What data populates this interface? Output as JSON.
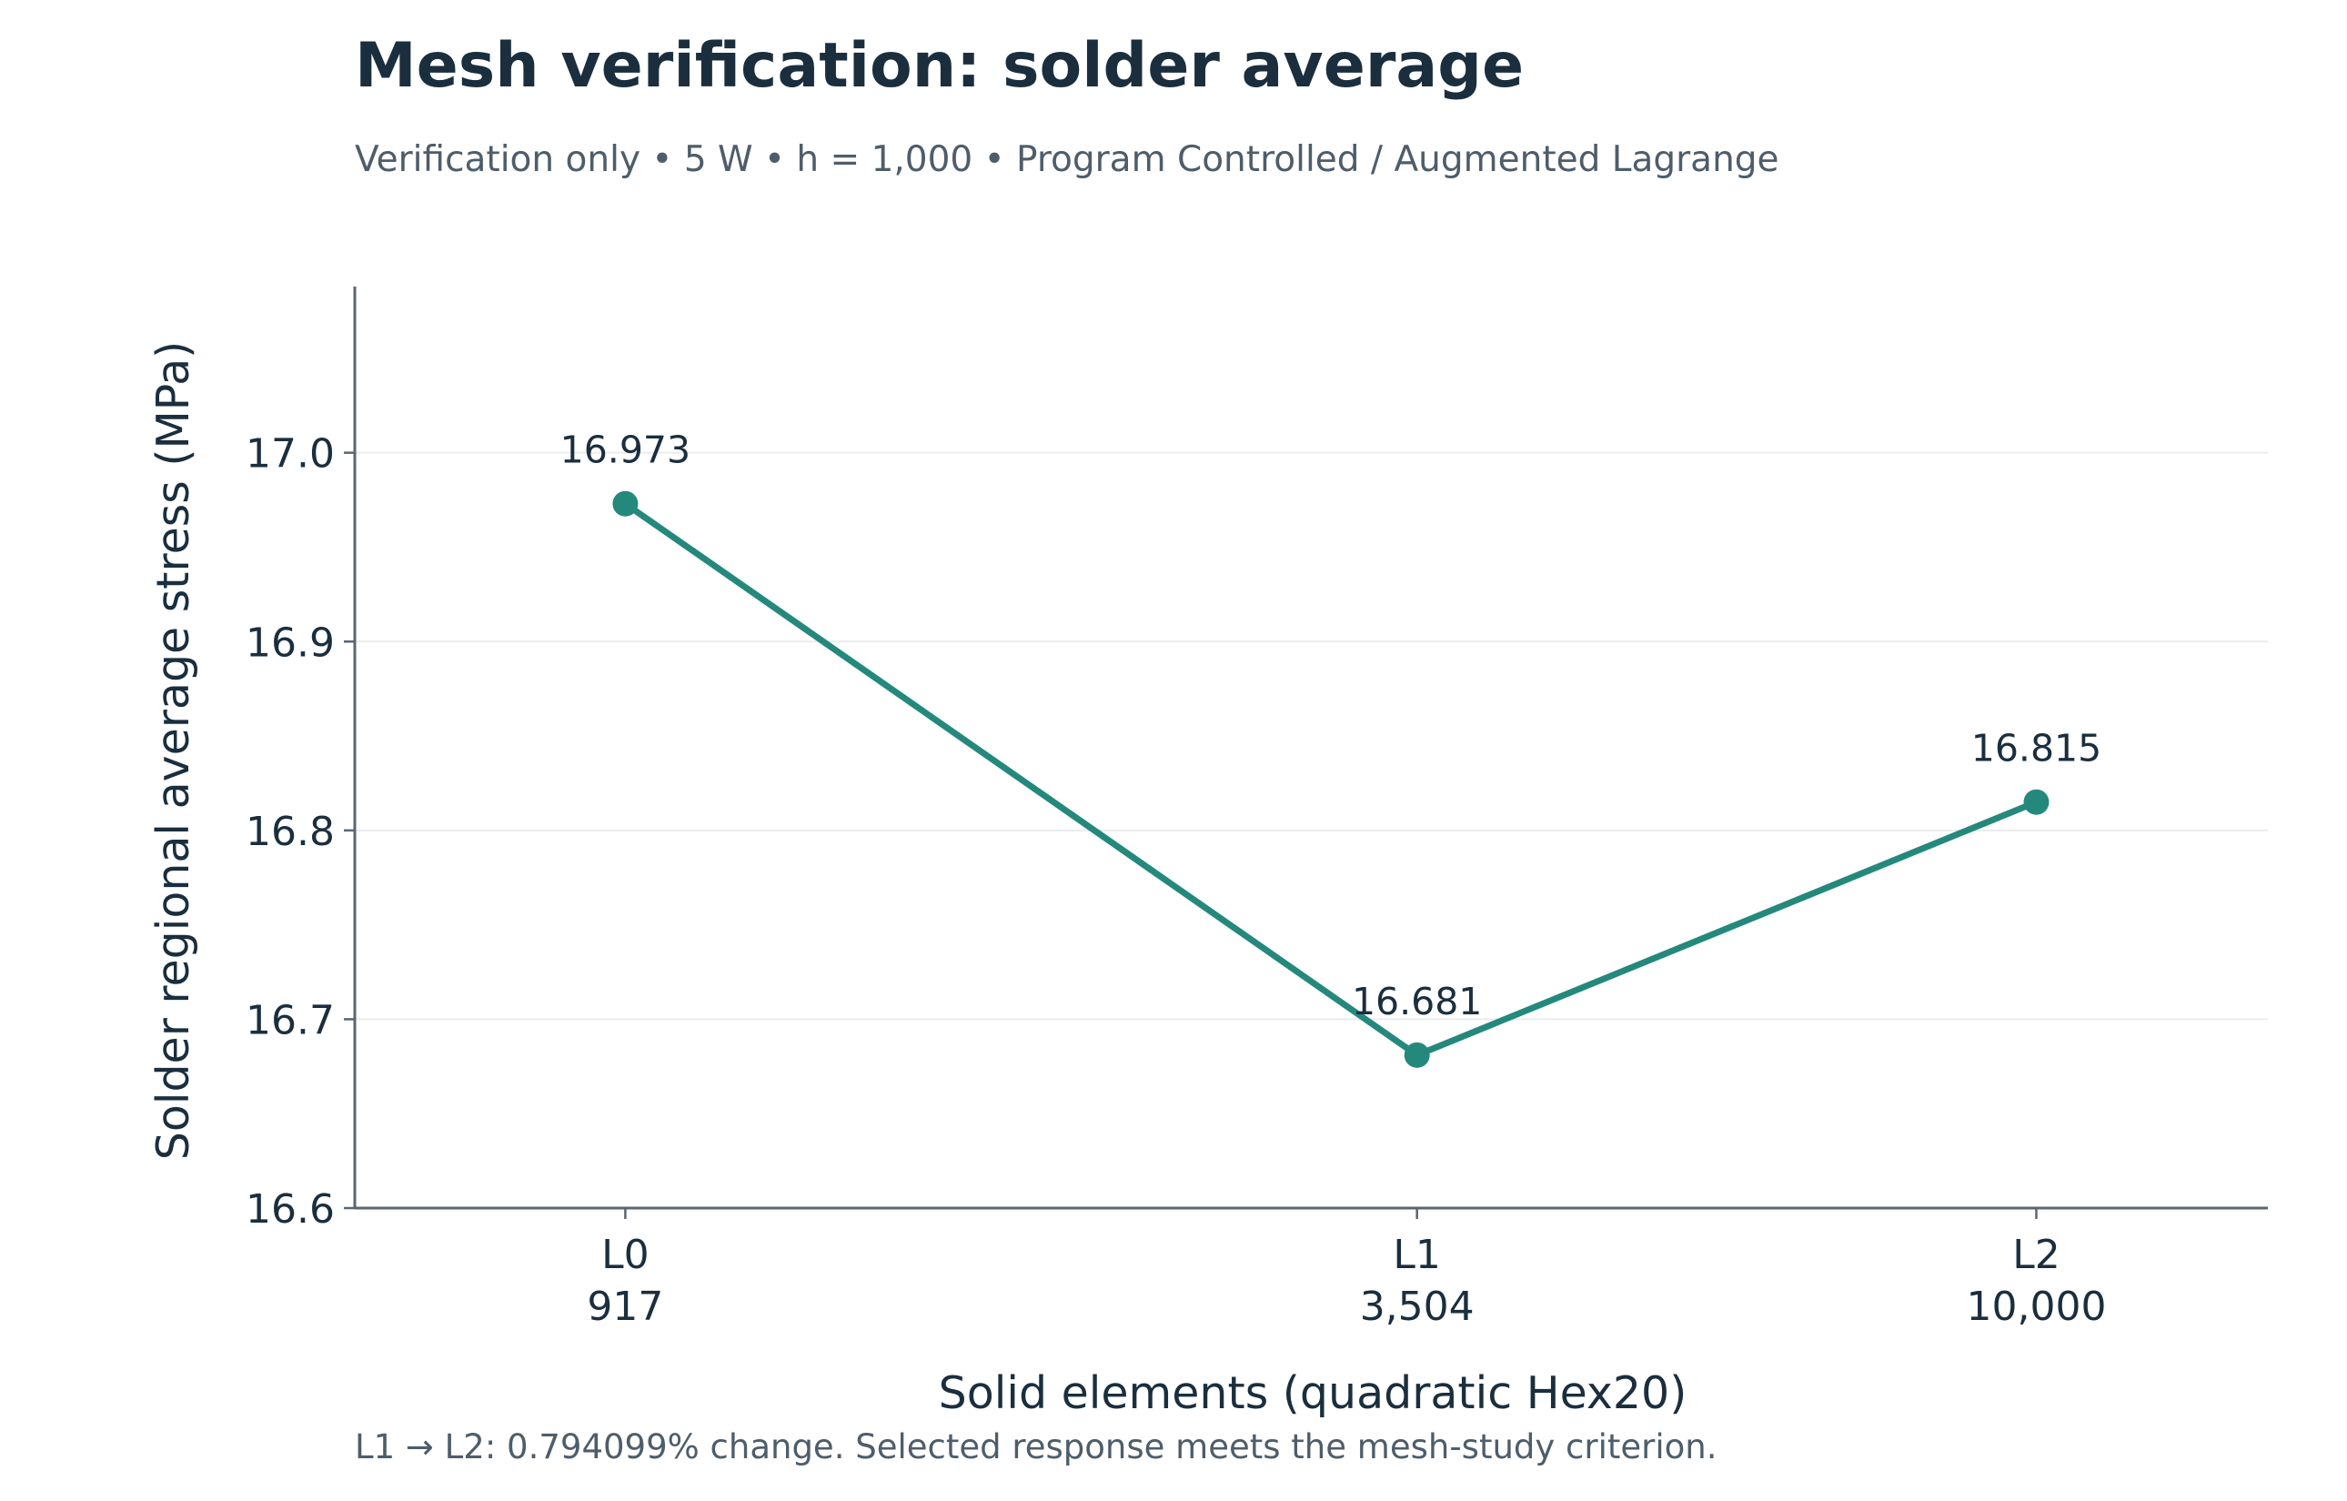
{
  "chart_data": {
    "type": "line",
    "title": "Mesh verification: solder average",
    "subtitle": "Verification only • 5 W • h = 1,000 • Program Controlled / Augmented Lagrange",
    "xlabel": "Solid elements (quadratic Hex20)",
    "ylabel": "Solder regional average stress (MPa)",
    "footnote": "L1 → L2: 0.794099% change. Selected response meets the mesh-study criterion.",
    "x_scale": "log",
    "xlim": [
      580,
      14800
    ],
    "ylim": [
      16.6,
      17.088
    ],
    "grid": "horizontal",
    "y_ticks": [
      {
        "value": 16.6,
        "label": "16.6"
      },
      {
        "value": 16.7,
        "label": "16.7"
      },
      {
        "value": 16.8,
        "label": "16.8"
      },
      {
        "value": 16.9,
        "label": "16.9"
      },
      {
        "value": 17.0,
        "label": "17.0"
      }
    ],
    "points": [
      {
        "level": "L0",
        "elements": 917,
        "elements_label": "917",
        "value": 16.973,
        "value_label": "16.973"
      },
      {
        "level": "L1",
        "elements": 3504,
        "elements_label": "3,504",
        "value": 16.681,
        "value_label": "16.681"
      },
      {
        "level": "L2",
        "elements": 10000,
        "elements_label": "10,000",
        "value": 16.815,
        "value_label": "16.815"
      }
    ],
    "colors": {
      "line": "#24897c",
      "title": "#1a2e3e",
      "text": "#1a2e3e",
      "muted": "#4e5d6a",
      "axis": "#5b6670",
      "grid": "#eaecee"
    }
  }
}
